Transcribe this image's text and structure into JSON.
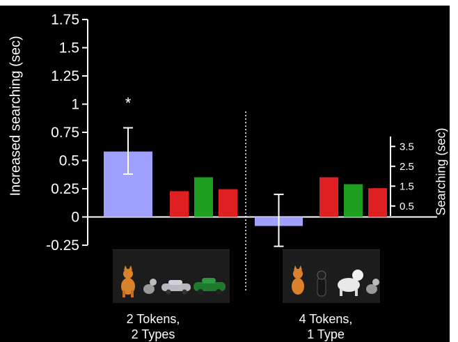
{
  "chart_data": {
    "type": "bar",
    "ylabel": "Increased searching (sec)",
    "ylim": [
      -0.25,
      1.75
    ],
    "yticks": [
      "1.75",
      "1.5",
      "1.25",
      "1",
      "0.75",
      "0.5",
      "0.25",
      "0",
      "-0.25"
    ],
    "ytick_values": [
      1.75,
      1.5,
      1.25,
      1,
      0.75,
      0.5,
      0.25,
      0,
      -0.25
    ],
    "secondary_ylabel": "Searching (sec)",
    "secondary_yticks": [
      "3.5",
      "2.5",
      "1.5",
      "0.5"
    ],
    "secondary_ytick_values": [
      3.5,
      2.5,
      1.5,
      0.5
    ],
    "secondary_ylim": [
      0,
      4.0
    ],
    "groups": [
      {
        "label_line1": "2 Tokens,",
        "label_line2": "2 Types",
        "difference_bar": {
          "value": 0.58,
          "error_low": 0.38,
          "error_high": 0.79,
          "color": "#a0a0ff"
        },
        "annotation": "*",
        "searching_bars": [
          {
            "value": 1.3,
            "color": "#e02020"
          },
          {
            "value": 2.0,
            "color": "#1e9e1e"
          },
          {
            "value": 1.4,
            "color": "#e02020"
          }
        ],
        "thumbnail_icons": [
          "cat-figurine-icon",
          "cat-figurine-icon",
          "toy-car-icon",
          "toy-car-icon"
        ]
      },
      {
        "label_line1": "4 Tokens,",
        "label_line2": "1 Type",
        "difference_bar": {
          "value": -0.08,
          "error_low": -0.26,
          "error_high": 0.2,
          "color": "#a0a0ff"
        },
        "annotation": "",
        "searching_bars": [
          {
            "value": 2.0,
            "color": "#e02020"
          },
          {
            "value": 1.65,
            "color": "#1e9e1e"
          },
          {
            "value": 1.45,
            "color": "#e02020"
          }
        ],
        "thumbnail_icons": [
          "cat-figurine-icon",
          "cat-figurine-icon",
          "cat-figurine-icon",
          "cat-figurine-icon"
        ]
      }
    ],
    "divider": "dotted-vertical-center",
    "grid": false,
    "legend": "none"
  }
}
